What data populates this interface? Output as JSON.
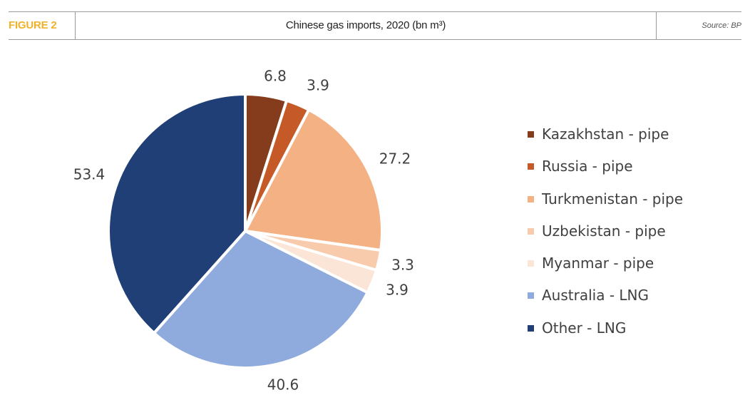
{
  "header": {
    "figure_label": "FIGURE 2",
    "title": "Chinese gas imports, 2020 (bn m³)",
    "source": "Source: BP",
    "accent_color": "#f0b229"
  },
  "chart_data": {
    "type": "pie",
    "title": "Chinese gas imports, 2020 (bn m³)",
    "legend_position": "right",
    "slices": [
      {
        "label": "Kazakhstan - pipe",
        "value": 6.8,
        "color": "#843c1c"
      },
      {
        "label": "Russia - pipe",
        "value": 3.9,
        "color": "#c55a28"
      },
      {
        "label": "Turkmenistan - pipe",
        "value": 27.2,
        "color": "#f4b183"
      },
      {
        "label": "Uzbekistan - pipe",
        "value": 3.3,
        "color": "#f8cbad"
      },
      {
        "label": "Myanmar - pipe",
        "value": 3.9,
        "color": "#fbe5d6"
      },
      {
        "label": "Australia - LNG",
        "value": 40.6,
        "color": "#8faadc"
      },
      {
        "label": "Other - LNG",
        "value": 53.4,
        "color": "#203f76"
      }
    ]
  }
}
